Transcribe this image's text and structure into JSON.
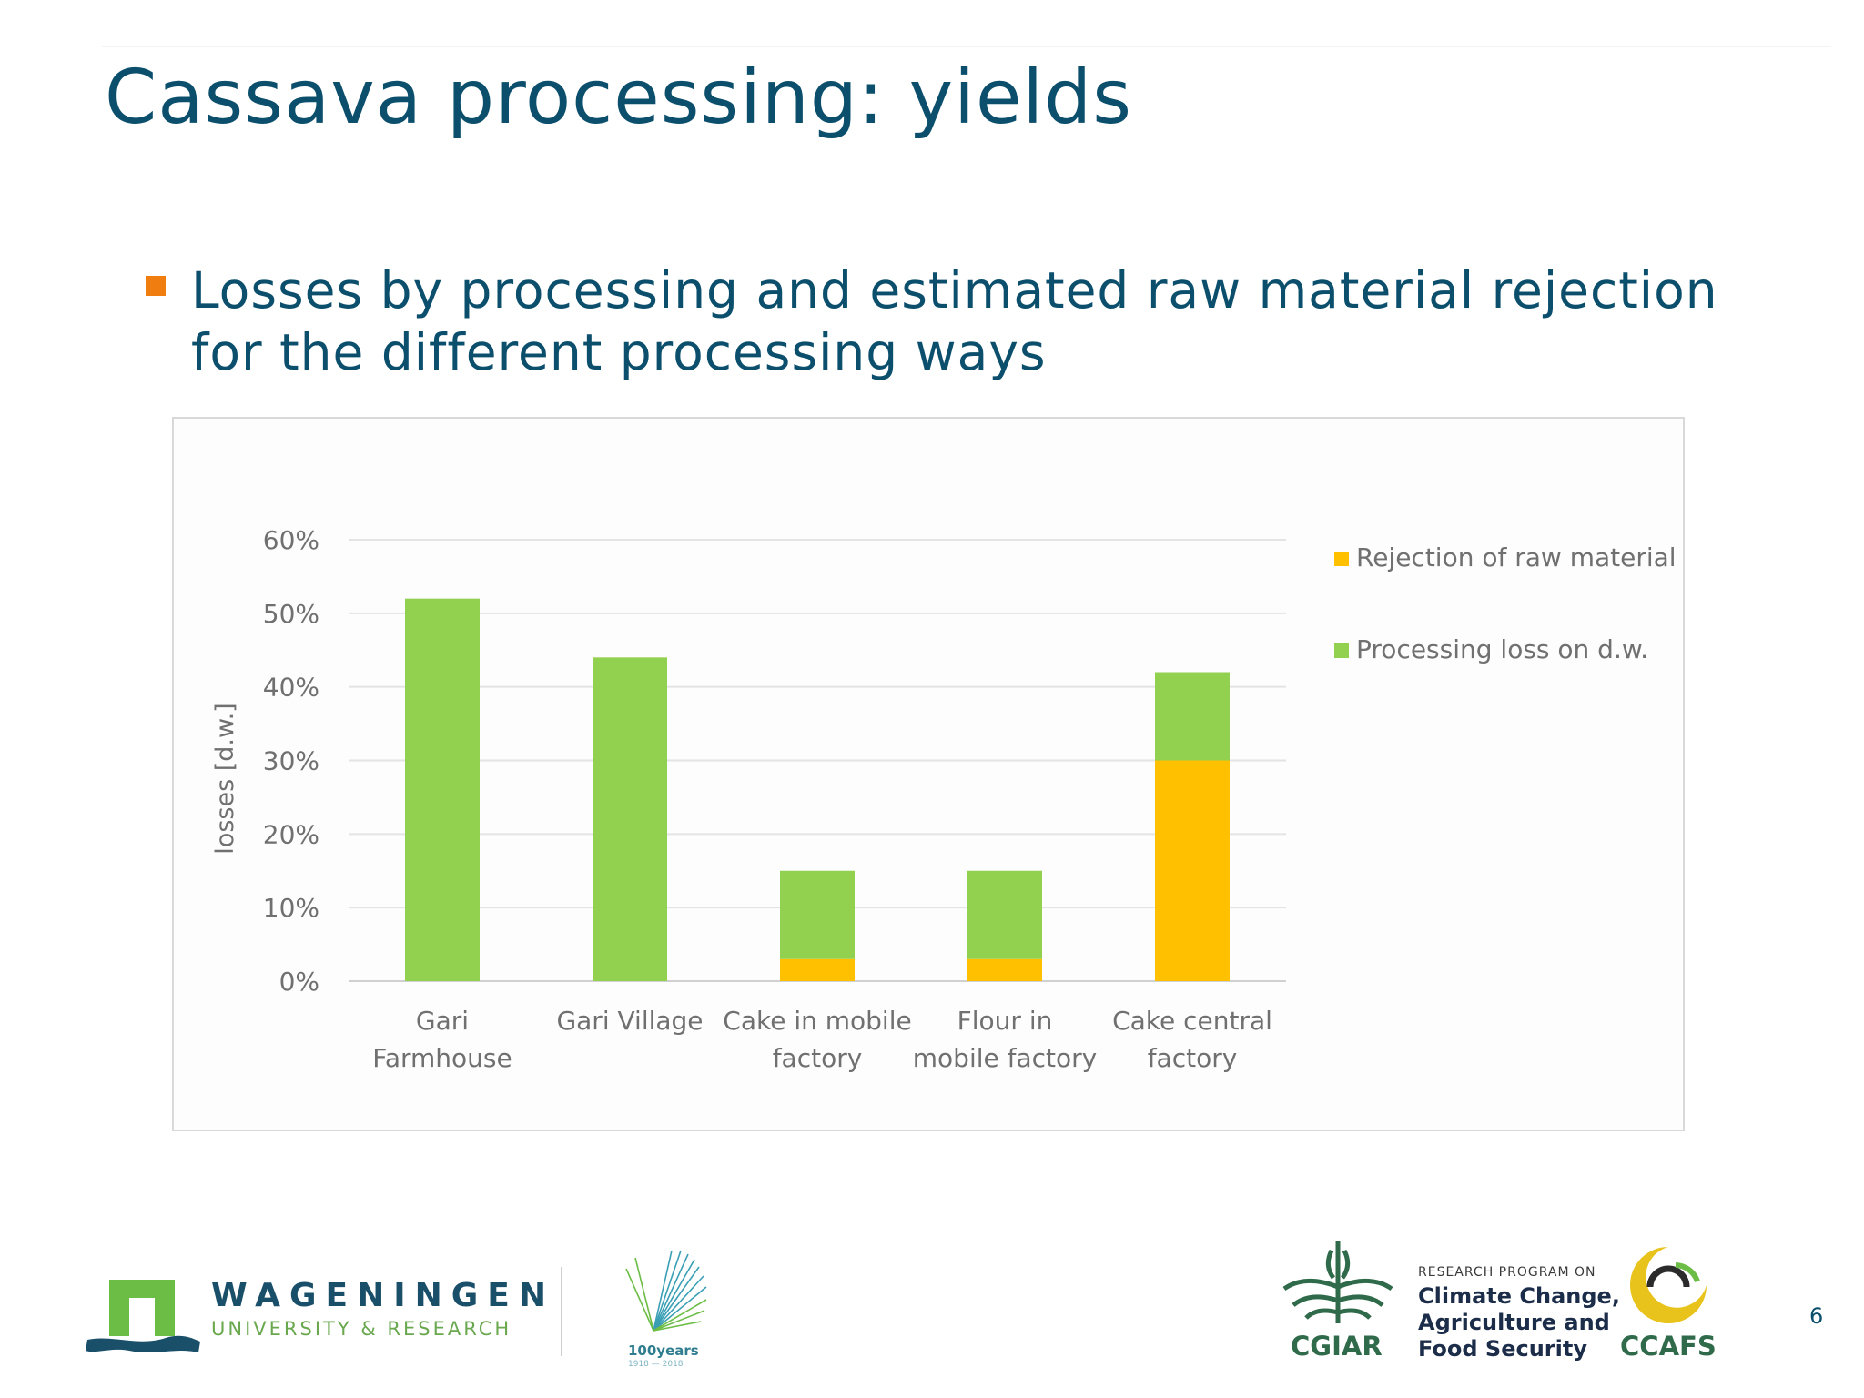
{
  "slide": {
    "title": "Cassava processing: yields",
    "bullet": "Losses by processing and estimated raw material rejection for the different processing ways",
    "page_number": "6"
  },
  "footer": {
    "wur_name": "WAGENINGEN",
    "wur_sub": "UNIVERSITY & RESEARCH",
    "anniversary": "100years",
    "anniversary_range": "1918 — 2018",
    "cgiar": "CGIAR",
    "program_kicker": "RESEARCH PROGRAM ON",
    "program_lines": [
      "Climate Change,",
      "Agriculture and",
      "Food Security"
    ],
    "ccafs": "CCAFS"
  },
  "colors": {
    "title": "#0b4f6c",
    "bullet": "#f07d10",
    "rejection": "#ffc000",
    "processing": "#92d050"
  },
  "chart_data": {
    "type": "bar",
    "stacked": true,
    "categories": [
      [
        "Gari",
        "Farmhouse"
      ],
      [
        "Gari Village"
      ],
      [
        "Cake in mobile",
        "factory"
      ],
      [
        "Flour in",
        "mobile factory"
      ],
      [
        "Cake central",
        "factory"
      ]
    ],
    "series": [
      {
        "name": "Rejection of raw material",
        "color": "#ffc000",
        "values": [
          0,
          0,
          3,
          3,
          30
        ]
      },
      {
        "name": "Processing loss on d.w.",
        "color": "#92d050",
        "values": [
          52,
          44,
          12,
          12,
          12
        ]
      }
    ],
    "ylabel": "losses  [d.w.]",
    "ylim": [
      0,
      60
    ],
    "yticks": [
      0,
      10,
      20,
      30,
      40,
      50,
      60
    ],
    "ytick_labels": [
      "0%",
      "10%",
      "20%",
      "30%",
      "40%",
      "50%",
      "60%"
    ],
    "grid": true,
    "legend_position": "right"
  }
}
